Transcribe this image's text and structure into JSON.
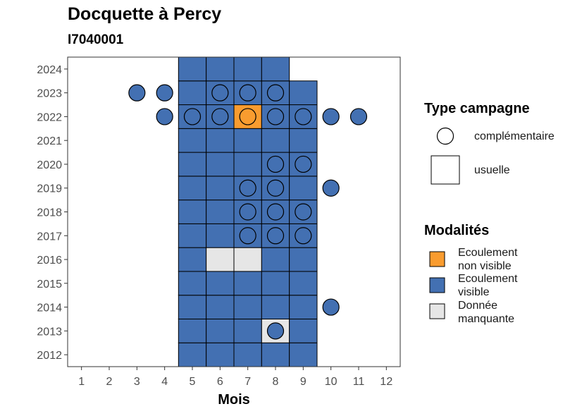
{
  "title": "Docquette à Percy",
  "subtitle": "I7040001",
  "chart_data": {
    "type": "heatmap",
    "xlabel": "Mois",
    "ylabel": "",
    "x_ticks": [
      "1",
      "2",
      "3",
      "4",
      "5",
      "6",
      "7",
      "8",
      "9",
      "10",
      "11",
      "12"
    ],
    "y_ticks": [
      "2012",
      "2013",
      "2014",
      "2015",
      "2016",
      "2017",
      "2018",
      "2019",
      "2020",
      "2021",
      "2022",
      "2023",
      "2024"
    ],
    "colors": {
      "Ecoulement non visible": "#F99C2F",
      "Ecoulement visible": "#4370B2",
      "Donnée manquante": "#E6E6E6"
    },
    "tiles": [
      {
        "year": 2012,
        "month": 5,
        "modalite": "Ecoulement visible",
        "campagne": "usuelle"
      },
      {
        "year": 2012,
        "month": 6,
        "modalite": "Ecoulement visible",
        "campagne": "usuelle"
      },
      {
        "year": 2012,
        "month": 7,
        "modalite": "Ecoulement visible",
        "campagne": "usuelle"
      },
      {
        "year": 2012,
        "month": 8,
        "modalite": "Ecoulement visible",
        "campagne": "usuelle"
      },
      {
        "year": 2012,
        "month": 9,
        "modalite": "Ecoulement visible",
        "campagne": "usuelle"
      },
      {
        "year": 2013,
        "month": 5,
        "modalite": "Ecoulement visible",
        "campagne": "usuelle"
      },
      {
        "year": 2013,
        "month": 6,
        "modalite": "Ecoulement visible",
        "campagne": "usuelle"
      },
      {
        "year": 2013,
        "month": 7,
        "modalite": "Ecoulement visible",
        "campagne": "usuelle"
      },
      {
        "year": 2013,
        "month": 8,
        "modalite": "Donnée manquante",
        "campagne": "usuelle"
      },
      {
        "year": 2013,
        "month": 9,
        "modalite": "Ecoulement visible",
        "campagne": "usuelle"
      },
      {
        "year": 2014,
        "month": 5,
        "modalite": "Ecoulement visible",
        "campagne": "usuelle"
      },
      {
        "year": 2014,
        "month": 6,
        "modalite": "Ecoulement visible",
        "campagne": "usuelle"
      },
      {
        "year": 2014,
        "month": 7,
        "modalite": "Ecoulement visible",
        "campagne": "usuelle"
      },
      {
        "year": 2014,
        "month": 8,
        "modalite": "Ecoulement visible",
        "campagne": "usuelle"
      },
      {
        "year": 2014,
        "month": 9,
        "modalite": "Ecoulement visible",
        "campagne": "usuelle"
      },
      {
        "year": 2015,
        "month": 5,
        "modalite": "Ecoulement visible",
        "campagne": "usuelle"
      },
      {
        "year": 2015,
        "month": 6,
        "modalite": "Ecoulement visible",
        "campagne": "usuelle"
      },
      {
        "year": 2015,
        "month": 7,
        "modalite": "Ecoulement visible",
        "campagne": "usuelle"
      },
      {
        "year": 2015,
        "month": 8,
        "modalite": "Ecoulement visible",
        "campagne": "usuelle"
      },
      {
        "year": 2015,
        "month": 9,
        "modalite": "Ecoulement visible",
        "campagne": "usuelle"
      },
      {
        "year": 2016,
        "month": 5,
        "modalite": "Ecoulement visible",
        "campagne": "usuelle"
      },
      {
        "year": 2016,
        "month": 6,
        "modalite": "Donnée manquante",
        "campagne": "usuelle"
      },
      {
        "year": 2016,
        "month": 7,
        "modalite": "Donnée manquante",
        "campagne": "usuelle"
      },
      {
        "year": 2016,
        "month": 8,
        "modalite": "Ecoulement visible",
        "campagne": "usuelle"
      },
      {
        "year": 2016,
        "month": 9,
        "modalite": "Ecoulement visible",
        "campagne": "usuelle"
      },
      {
        "year": 2017,
        "month": 5,
        "modalite": "Ecoulement visible",
        "campagne": "usuelle"
      },
      {
        "year": 2017,
        "month": 6,
        "modalite": "Ecoulement visible",
        "campagne": "usuelle"
      },
      {
        "year": 2017,
        "month": 7,
        "modalite": "Ecoulement visible",
        "campagne": "usuelle"
      },
      {
        "year": 2017,
        "month": 8,
        "modalite": "Ecoulement visible",
        "campagne": "usuelle"
      },
      {
        "year": 2017,
        "month": 9,
        "modalite": "Ecoulement visible",
        "campagne": "usuelle"
      },
      {
        "year": 2018,
        "month": 5,
        "modalite": "Ecoulement visible",
        "campagne": "usuelle"
      },
      {
        "year": 2018,
        "month": 6,
        "modalite": "Ecoulement visible",
        "campagne": "usuelle"
      },
      {
        "year": 2018,
        "month": 7,
        "modalite": "Ecoulement visible",
        "campagne": "usuelle"
      },
      {
        "year": 2018,
        "month": 8,
        "modalite": "Ecoulement visible",
        "campagne": "usuelle"
      },
      {
        "year": 2018,
        "month": 9,
        "modalite": "Ecoulement visible",
        "campagne": "usuelle"
      },
      {
        "year": 2019,
        "month": 5,
        "modalite": "Ecoulement visible",
        "campagne": "usuelle"
      },
      {
        "year": 2019,
        "month": 6,
        "modalite": "Ecoulement visible",
        "campagne": "usuelle"
      },
      {
        "year": 2019,
        "month": 7,
        "modalite": "Ecoulement visible",
        "campagne": "usuelle"
      },
      {
        "year": 2019,
        "month": 8,
        "modalite": "Ecoulement visible",
        "campagne": "usuelle"
      },
      {
        "year": 2019,
        "month": 9,
        "modalite": "Ecoulement visible",
        "campagne": "usuelle"
      },
      {
        "year": 2020,
        "month": 5,
        "modalite": "Ecoulement visible",
        "campagne": "usuelle"
      },
      {
        "year": 2020,
        "month": 6,
        "modalite": "Ecoulement visible",
        "campagne": "usuelle"
      },
      {
        "year": 2020,
        "month": 7,
        "modalite": "Ecoulement visible",
        "campagne": "usuelle"
      },
      {
        "year": 2020,
        "month": 8,
        "modalite": "Ecoulement visible",
        "campagne": "usuelle"
      },
      {
        "year": 2020,
        "month": 9,
        "modalite": "Ecoulement visible",
        "campagne": "usuelle"
      },
      {
        "year": 2021,
        "month": 5,
        "modalite": "Ecoulement visible",
        "campagne": "usuelle"
      },
      {
        "year": 2021,
        "month": 6,
        "modalite": "Ecoulement visible",
        "campagne": "usuelle"
      },
      {
        "year": 2021,
        "month": 7,
        "modalite": "Ecoulement visible",
        "campagne": "usuelle"
      },
      {
        "year": 2021,
        "month": 8,
        "modalite": "Ecoulement visible",
        "campagne": "usuelle"
      },
      {
        "year": 2021,
        "month": 9,
        "modalite": "Ecoulement visible",
        "campagne": "usuelle"
      },
      {
        "year": 2022,
        "month": 5,
        "modalite": "Ecoulement visible",
        "campagne": "usuelle"
      },
      {
        "year": 2022,
        "month": 6,
        "modalite": "Ecoulement visible",
        "campagne": "usuelle"
      },
      {
        "year": 2022,
        "month": 7,
        "modalite": "Ecoulement non visible",
        "campagne": "usuelle"
      },
      {
        "year": 2022,
        "month": 8,
        "modalite": "Ecoulement visible",
        "campagne": "usuelle"
      },
      {
        "year": 2022,
        "month": 9,
        "modalite": "Ecoulement visible",
        "campagne": "usuelle"
      },
      {
        "year": 2023,
        "month": 5,
        "modalite": "Ecoulement visible",
        "campagne": "usuelle"
      },
      {
        "year": 2023,
        "month": 6,
        "modalite": "Ecoulement visible",
        "campagne": "usuelle"
      },
      {
        "year": 2023,
        "month": 7,
        "modalite": "Ecoulement visible",
        "campagne": "usuelle"
      },
      {
        "year": 2023,
        "month": 8,
        "modalite": "Ecoulement visible",
        "campagne": "usuelle"
      },
      {
        "year": 2023,
        "month": 9,
        "modalite": "Ecoulement visible",
        "campagne": "usuelle"
      },
      {
        "year": 2024,
        "month": 5,
        "modalite": "Ecoulement visible",
        "campagne": "usuelle"
      },
      {
        "year": 2024,
        "month": 6,
        "modalite": "Ecoulement visible",
        "campagne": "usuelle"
      },
      {
        "year": 2024,
        "month": 7,
        "modalite": "Ecoulement visible",
        "campagne": "usuelle"
      },
      {
        "year": 2024,
        "month": 8,
        "modalite": "Ecoulement visible",
        "campagne": "usuelle"
      }
    ],
    "points": [
      {
        "year": 2013,
        "month": 8,
        "modalite": "Ecoulement visible",
        "campagne": "complémentaire"
      },
      {
        "year": 2014,
        "month": 10,
        "modalite": "Ecoulement visible",
        "campagne": "complémentaire"
      },
      {
        "year": 2017,
        "month": 7,
        "modalite": "Ecoulement visible",
        "campagne": "complémentaire"
      },
      {
        "year": 2017,
        "month": 8,
        "modalite": "Ecoulement visible",
        "campagne": "complémentaire"
      },
      {
        "year": 2017,
        "month": 9,
        "modalite": "Ecoulement visible",
        "campagne": "complémentaire"
      },
      {
        "year": 2018,
        "month": 7,
        "modalite": "Ecoulement visible",
        "campagne": "complémentaire"
      },
      {
        "year": 2018,
        "month": 8,
        "modalite": "Ecoulement visible",
        "campagne": "complémentaire"
      },
      {
        "year": 2018,
        "month": 9,
        "modalite": "Ecoulement visible",
        "campagne": "complémentaire"
      },
      {
        "year": 2019,
        "month": 7,
        "modalite": "Ecoulement visible",
        "campagne": "complémentaire"
      },
      {
        "year": 2019,
        "month": 8,
        "modalite": "Ecoulement visible",
        "campagne": "complémentaire"
      },
      {
        "year": 2019,
        "month": 10,
        "modalite": "Ecoulement visible",
        "campagne": "complémentaire"
      },
      {
        "year": 2020,
        "month": 8,
        "modalite": "Ecoulement visible",
        "campagne": "complémentaire"
      },
      {
        "year": 2020,
        "month": 9,
        "modalite": "Ecoulement visible",
        "campagne": "complémentaire"
      },
      {
        "year": 2022,
        "month": 4,
        "modalite": "Ecoulement visible",
        "campagne": "complémentaire"
      },
      {
        "year": 2022,
        "month": 5,
        "modalite": "Ecoulement visible",
        "campagne": "complémentaire"
      },
      {
        "year": 2022,
        "month": 6,
        "modalite": "Ecoulement visible",
        "campagne": "complémentaire"
      },
      {
        "year": 2022,
        "month": 7,
        "modalite": "Ecoulement non visible",
        "campagne": "complémentaire"
      },
      {
        "year": 2022,
        "month": 8,
        "modalite": "Ecoulement visible",
        "campagne": "complémentaire"
      },
      {
        "year": 2022,
        "month": 9,
        "modalite": "Ecoulement visible",
        "campagne": "complémentaire"
      },
      {
        "year": 2022,
        "month": 10,
        "modalite": "Ecoulement visible",
        "campagne": "complémentaire"
      },
      {
        "year": 2022,
        "month": 11,
        "modalite": "Ecoulement visible",
        "campagne": "complémentaire"
      },
      {
        "year": 2023,
        "month": 3,
        "modalite": "Ecoulement visible",
        "campagne": "complémentaire"
      },
      {
        "year": 2023,
        "month": 4,
        "modalite": "Ecoulement visible",
        "campagne": "complémentaire"
      },
      {
        "year": 2023,
        "month": 6,
        "modalite": "Ecoulement visible",
        "campagne": "complémentaire"
      },
      {
        "year": 2023,
        "month": 7,
        "modalite": "Ecoulement visible",
        "campagne": "complémentaire"
      },
      {
        "year": 2023,
        "month": 8,
        "modalite": "Ecoulement visible",
        "campagne": "complémentaire"
      }
    ],
    "xlim": [
      0.5,
      12.5
    ],
    "ylim": [
      2011.5,
      2024.5
    ],
    "grid": false,
    "legend_position": "right"
  },
  "legend": {
    "campagne_title": "Type campagne",
    "campagne_items": [
      "complémentaire",
      "usuelle"
    ],
    "modalites_title": "Modalités",
    "modalites_items": [
      {
        "label": "Ecoulement\nnon visible",
        "color": "#F99C2F"
      },
      {
        "label": "Ecoulement\nvisible",
        "color": "#4370B2"
      },
      {
        "label": "Donnée\nmanquante",
        "color": "#E6E6E6"
      }
    ]
  }
}
